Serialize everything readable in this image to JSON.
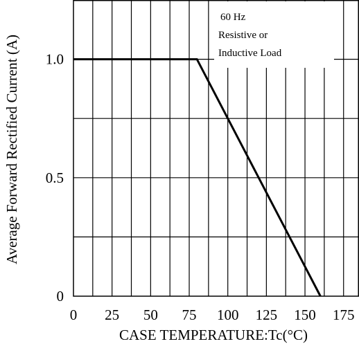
{
  "chart_data": {
    "type": "line",
    "xlabel": "CASE TEMPERATURE:Tc(°C)",
    "ylabel": "Average Forward Rectified Current (A)",
    "x_ticks": [
      0,
      25,
      50,
      75,
      100,
      125,
      150,
      175
    ],
    "y_ticks": [
      {
        "value": 0,
        "label": "0"
      },
      {
        "value": 0.5,
        "label": "0.5"
      },
      {
        "value": 1.0,
        "label": "1.0"
      }
    ],
    "xlim": [
      0,
      185
    ],
    "ylim": [
      0,
      1.25
    ],
    "grid": true,
    "annotation": [
      "60 Hz",
      "Resistive or",
      "Inductive Load"
    ],
    "series": [
      {
        "x": [
          0,
          80,
          160
        ],
        "y": [
          1.0,
          1.0,
          0
        ]
      }
    ]
  }
}
